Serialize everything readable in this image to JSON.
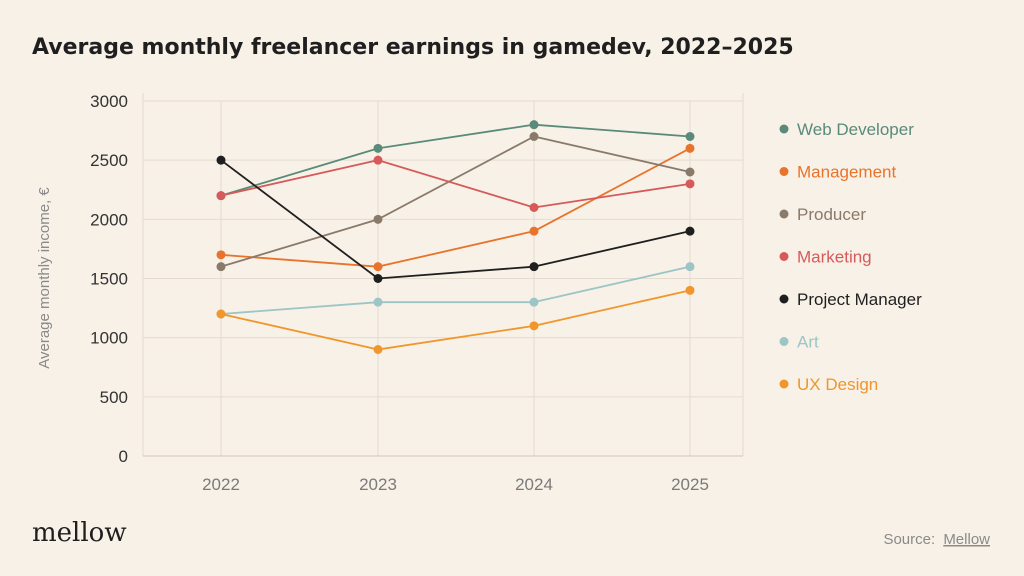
{
  "chart_data": {
    "type": "line",
    "title": "Average monthly freelancer earnings in gamedev, 2022–2025",
    "xlabel": "",
    "ylabel": "Average monthly income, €",
    "x": [
      "2022",
      "2023",
      "2024",
      "2025"
    ],
    "ylim": [
      0,
      3000
    ],
    "yticks": [
      0,
      500,
      1000,
      1500,
      2000,
      2500,
      3000
    ],
    "yticklabels": [
      "0",
      "500",
      "1000",
      "1500",
      "2000",
      "2500",
      "3000"
    ],
    "grid": true,
    "legend_position": "right",
    "series": [
      {
        "name": "Web Developer",
        "color": "#5a8a7a",
        "values": [
          2200,
          2600,
          2800,
          2700
        ]
      },
      {
        "name": "Management",
        "color": "#e8732a",
        "values": [
          1700,
          1600,
          1900,
          2600
        ]
      },
      {
        "name": "Producer",
        "color": "#8a7a6a",
        "values": [
          1600,
          2000,
          2700,
          2400
        ]
      },
      {
        "name": "Marketing",
        "color": "#d65a5a",
        "values": [
          2200,
          2500,
          2100,
          2300
        ]
      },
      {
        "name": "Project Manager",
        "color": "#1f1f1f",
        "values": [
          2500,
          1500,
          1600,
          1900
        ]
      },
      {
        "name": "Art",
        "color": "#9cc5c5",
        "values": [
          1200,
          1300,
          1300,
          1600
        ]
      },
      {
        "name": "UX Design",
        "color": "#f0962a",
        "values": [
          1200,
          900,
          1100,
          1400
        ]
      }
    ]
  },
  "branding": {
    "logo": "mellow",
    "source_label": "Source:",
    "source_name": "Mellow"
  }
}
